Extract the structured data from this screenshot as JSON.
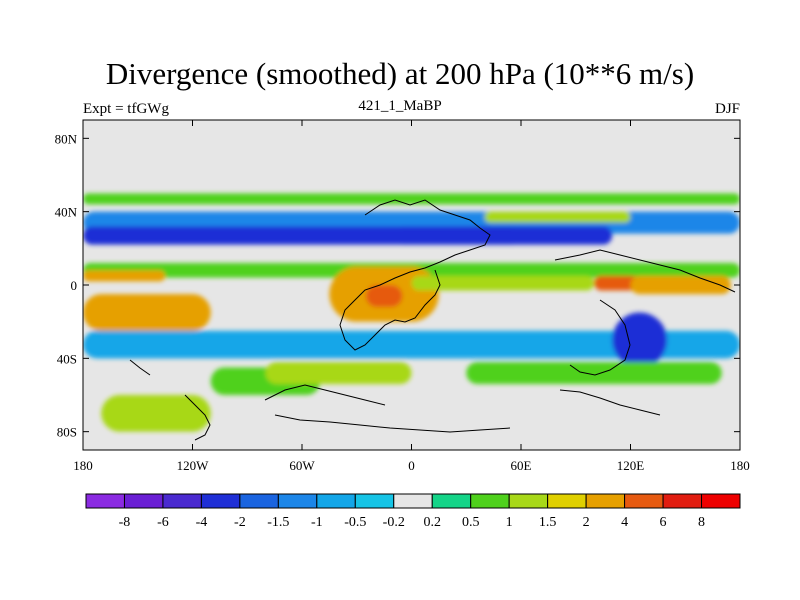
{
  "title": "Divergence (smoothed) at 200 hPa (10**6 m/s)",
  "subtitle_left": "Expt = tfGWg",
  "subtitle_center": "421_1_MaBP",
  "subtitle_right": "DJF",
  "chart_data": {
    "type": "heatmap",
    "projection": "cylindrical-equidistant",
    "xlim": [
      -180,
      180
    ],
    "ylim": [
      -90,
      90
    ],
    "x_ticks": [
      {
        "value": -180,
        "label": "180"
      },
      {
        "value": -120,
        "label": "120W"
      },
      {
        "value": -60,
        "label": "60W"
      },
      {
        "value": 0,
        "label": "0"
      },
      {
        "value": 60,
        "label": "60E"
      },
      {
        "value": 120,
        "label": "120E"
      },
      {
        "value": 180,
        "label": "180"
      }
    ],
    "y_ticks": [
      {
        "value": 80,
        "label": "80N"
      },
      {
        "value": 40,
        "label": "40N"
      },
      {
        "value": 0,
        "label": "0"
      },
      {
        "value": -40,
        "label": "40S"
      },
      {
        "value": -80,
        "label": "80S"
      }
    ],
    "colorbar": {
      "levels": [
        "-8",
        "-6",
        "-4",
        "-2",
        "-1.5",
        "-1",
        "-0.5",
        "-0.2",
        "0.2",
        "0.5",
        "1",
        "1.5",
        "2",
        "4",
        "6",
        "8"
      ],
      "colors": [
        "#8b2be2",
        "#6a1fd4",
        "#4a2ad0",
        "#1f2fd6",
        "#1a64e0",
        "#1c86e8",
        "#13a6e8",
        "#16c4e6",
        "#e6e6e6",
        "#14d488",
        "#4fd11c",
        "#a8d818",
        "#e0d000",
        "#e6a000",
        "#e65a10",
        "#e11d10",
        "#ee0000"
      ]
    },
    "features": [
      {
        "lon": -180,
        "lat": 50,
        "w": 360,
        "h": 6,
        "value": 0.6
      },
      {
        "lon": -180,
        "lat": 40,
        "w": 360,
        "h": 12,
        "value": -1.2
      },
      {
        "lon": -180,
        "lat": 32,
        "w": 240,
        "h": 10,
        "value": -2.4
      },
      {
        "lon": -10,
        "lat": 32,
        "w": 120,
        "h": 10,
        "value": -2.2
      },
      {
        "lon": 40,
        "lat": 40,
        "w": 80,
        "h": 6,
        "value": 1.5
      },
      {
        "lon": -180,
        "lat": 12,
        "w": 360,
        "h": 8,
        "value": 0.8
      },
      {
        "lon": -180,
        "lat": 8,
        "w": 45,
        "h": 6,
        "value": 3
      },
      {
        "lon": -45,
        "lat": 10,
        "w": 60,
        "h": 30,
        "value": 2.2
      },
      {
        "lon": -25,
        "lat": 0,
        "w": 20,
        "h": 12,
        "value": 5
      },
      {
        "lon": 0,
        "lat": 5,
        "w": 100,
        "h": 8,
        "value": 1.2
      },
      {
        "lon": 100,
        "lat": 5,
        "w": 25,
        "h": 8,
        "value": 4.5
      },
      {
        "lon": 120,
        "lat": 5,
        "w": 55,
        "h": 10,
        "value": 2.3
      },
      {
        "lon": -180,
        "lat": -5,
        "w": 70,
        "h": 20,
        "value": 2.5
      },
      {
        "lon": -180,
        "lat": -25,
        "w": 360,
        "h": 15,
        "value": -0.8
      },
      {
        "lon": 110,
        "lat": -15,
        "w": 30,
        "h": 30,
        "value": -2.5
      },
      {
        "lon": -110,
        "lat": -45,
        "w": 60,
        "h": 15,
        "value": 0.8
      },
      {
        "lon": -80,
        "lat": -42,
        "w": 80,
        "h": 12,
        "value": 1.3
      },
      {
        "lon": 30,
        "lat": -42,
        "w": 140,
        "h": 12,
        "value": 0.8
      },
      {
        "lon": -170,
        "lat": -60,
        "w": 60,
        "h": 20,
        "value": 1.2
      }
    ]
  }
}
